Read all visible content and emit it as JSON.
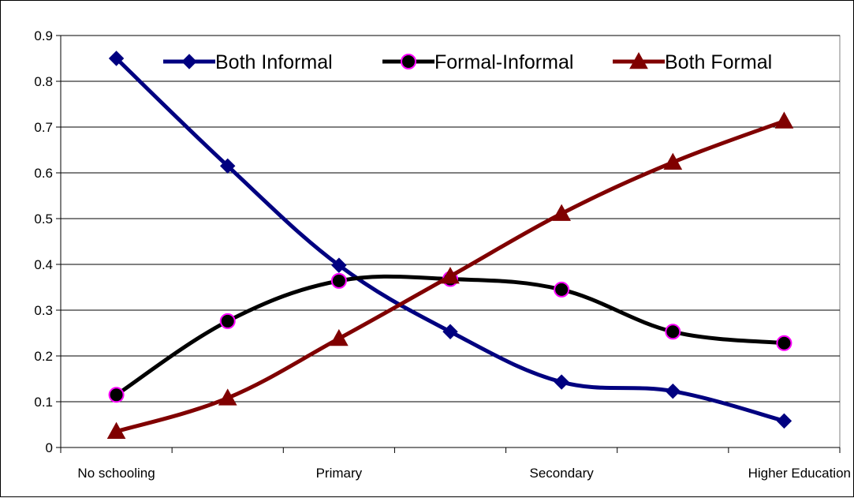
{
  "chart_data": {
    "type": "line",
    "x_tick_labels": [
      "No schooling",
      "Primary",
      "Secondary",
      "Higher Education"
    ],
    "x_tick_positions": [
      0,
      2,
      4,
      6.5
    ],
    "categories": [
      "No schooling",
      "",
      "Primary",
      "",
      "Secondary",
      "",
      "Higher Education"
    ],
    "x": [
      0,
      1,
      2,
      3,
      4,
      5,
      6
    ],
    "ylim": [
      0,
      0.9
    ],
    "yticks": [
      "0",
      "0.1",
      "0.2",
      "0.3",
      "0.4",
      "0.5",
      "0.6",
      "0.7",
      "0.8",
      "0.9"
    ],
    "grid": true,
    "legend_position": "top",
    "series": [
      {
        "name": "Both Informal",
        "values": [
          0.85,
          0.615,
          0.398,
          0.253,
          0.143,
          0.123,
          0.058
        ],
        "color": "#000080",
        "marker": "diamond"
      },
      {
        "name": "Formal-Informal",
        "values": [
          0.115,
          0.276,
          0.364,
          0.368,
          0.345,
          0.253,
          0.228
        ],
        "color": "#000000",
        "marker": "circle",
        "marker_edge": "#ff00ff"
      },
      {
        "name": "Both Formal",
        "values": [
          0.035,
          0.108,
          0.238,
          0.374,
          0.511,
          0.623,
          0.713
        ],
        "color": "#800000",
        "marker": "triangle"
      }
    ]
  }
}
